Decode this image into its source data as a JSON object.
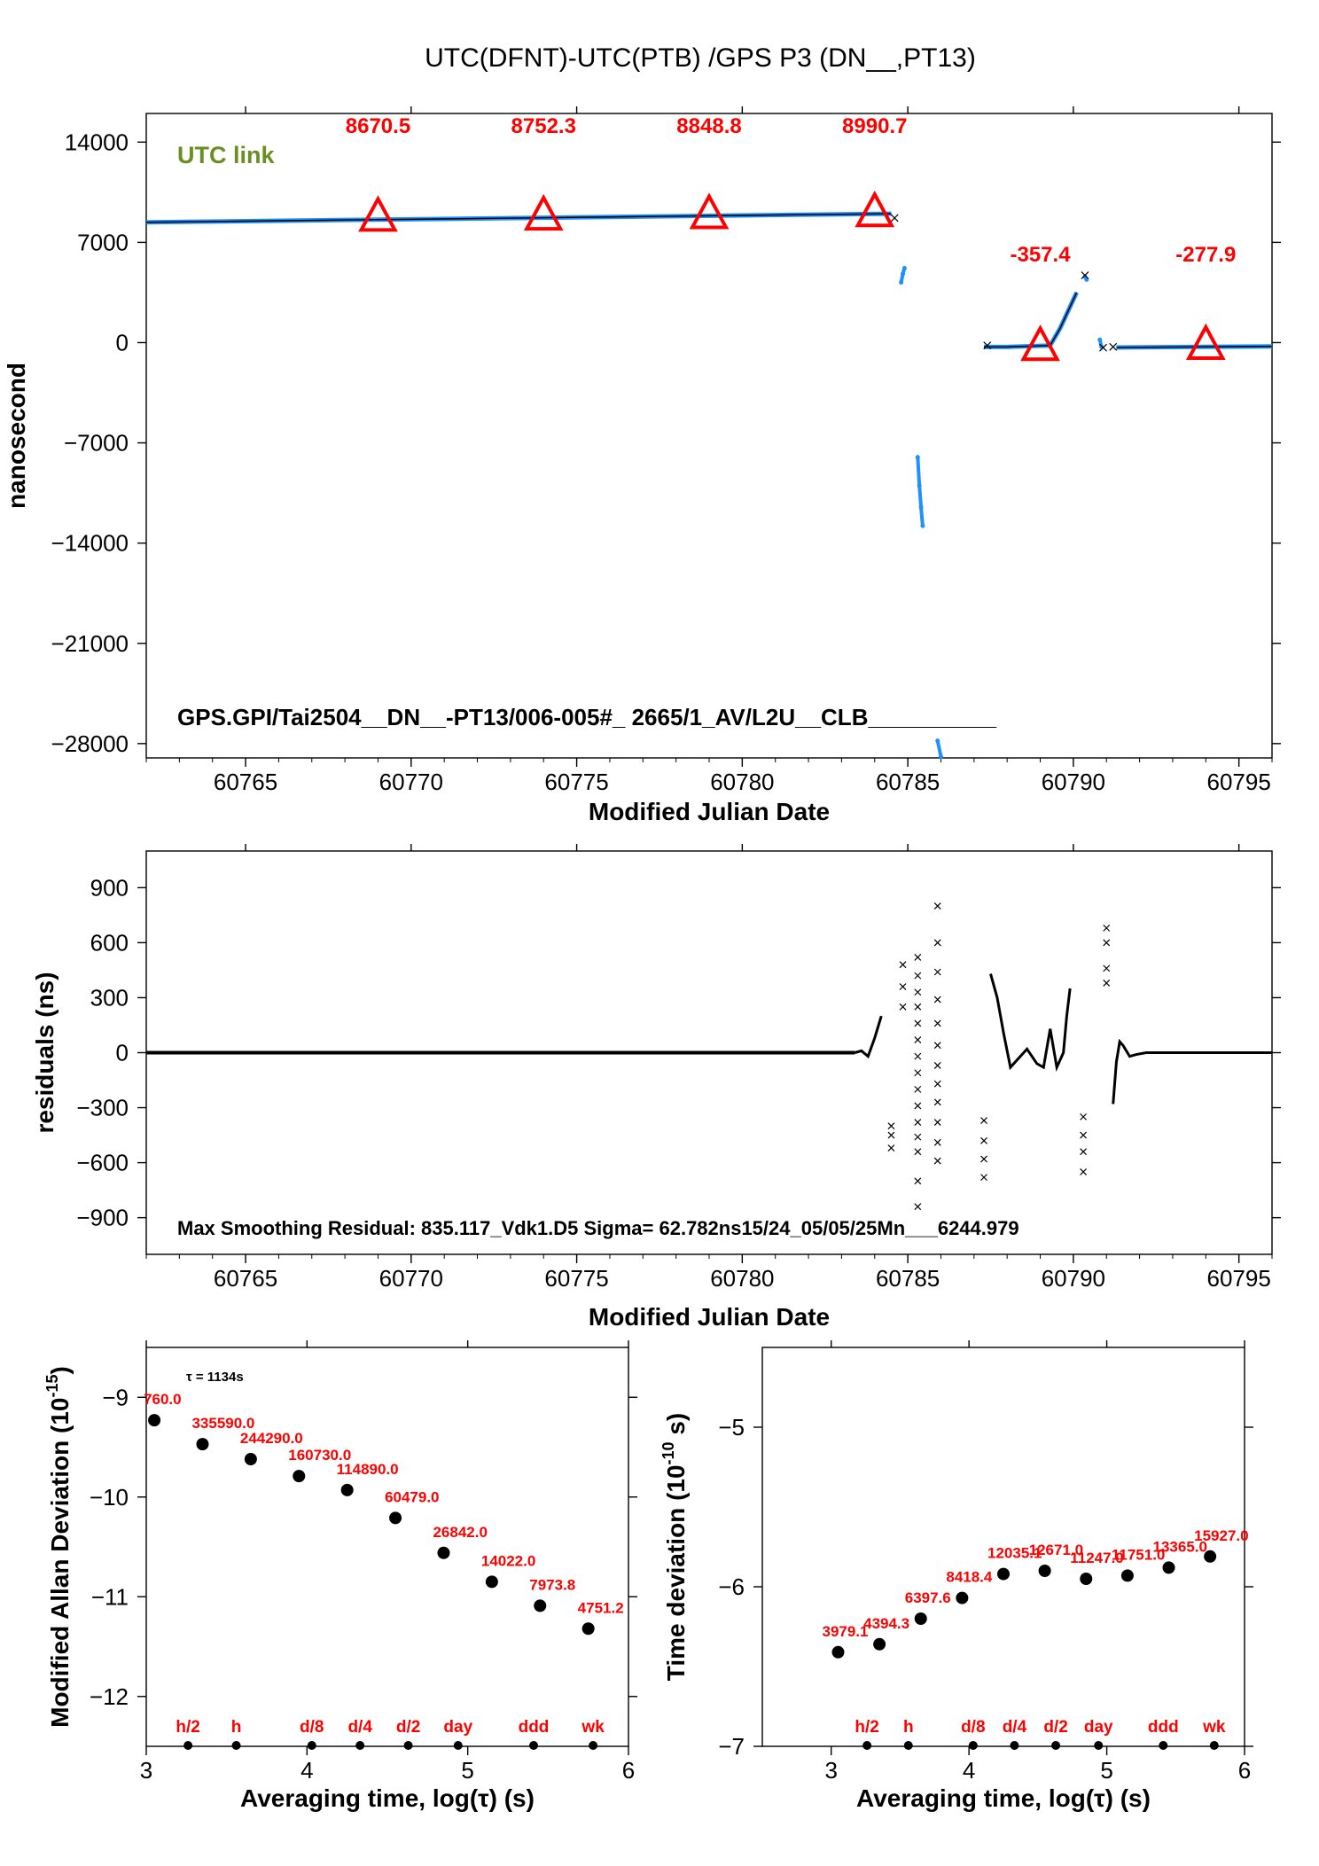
{
  "figure": {
    "title": "UTC(DFNT)-UTC(PTB)  /GPS  P3  (DN__,PT13)"
  },
  "colors": {
    "accent": "#ff0000",
    "series": "#1e90ff",
    "green": "#6b8e23",
    "black": "#000000"
  },
  "chart_data": [
    {
      "type": "scatter",
      "xlabel": "Modified Julian Date",
      "ylabel": "nanosecond",
      "xlim": [
        60762,
        60796
      ],
      "ylim": [
        -29000,
        16000
      ],
      "xticks": [
        60765,
        60770,
        60775,
        60780,
        60785,
        60790,
        60795
      ],
      "yticks": [
        14000,
        7000,
        0,
        -7000,
        -14000,
        -21000,
        -28000
      ],
      "tick_labels_y": [
        "14000",
        "7000",
        "0",
        "−7000",
        "−14000",
        "−21000",
        "−28000"
      ],
      "label_top_left": "UTC link",
      "footer_text": "GPS.GPI/Tai2504__DN__-PT13/006-005#_  2665/1_AV/L2U__CLB__________",
      "series": [
        {
          "kind": "line",
          "x": [
            60762,
            60784.5
          ],
          "y": [
            8400,
            9000
          ]
        },
        {
          "kind": "cluster",
          "x": [
            60784.8,
            60784.85,
            60784.9
          ],
          "y": [
            4200,
            4800,
            5200
          ]
        },
        {
          "kind": "cluster",
          "x": [
            60785.3,
            60785.35,
            60785.4,
            60785.45
          ],
          "y": [
            -8000,
            -10000,
            -11500,
            -12800
          ]
        },
        {
          "kind": "cluster",
          "x": [
            60785.9,
            60786.0
          ],
          "y": [
            -27800,
            -28900
          ]
        },
        {
          "kind": "segment",
          "x": [
            60787.3,
            60788.0,
            60789.3,
            60789.6,
            60790.1
          ],
          "y": [
            -300,
            -300,
            -200,
            1000,
            3500
          ]
        },
        {
          "kind": "cluster",
          "x": [
            60790.35,
            60790.4
          ],
          "y": [
            4600,
            4400
          ]
        },
        {
          "kind": "cluster",
          "x": [
            60790.8,
            60790.85
          ],
          "y": [
            200,
            -300
          ]
        },
        {
          "kind": "line",
          "x": [
            60791.3,
            60796
          ],
          "y": [
            -340,
            -260
          ]
        }
      ],
      "markers": [
        {
          "x": 60769,
          "y": 8670.5,
          "label": "8670.5"
        },
        {
          "x": 60774,
          "y": 8752.3,
          "label": "8752.3"
        },
        {
          "x": 60779,
          "y": 8848.8,
          "label": "8848.8"
        },
        {
          "x": 60784,
          "y": 8990.7,
          "label": "8990.7"
        },
        {
          "x": 60789,
          "y": -357.4,
          "label": "-357.4"
        },
        {
          "x": 60794,
          "y": -277.9,
          "label": "-277.9"
        }
      ]
    },
    {
      "type": "scatter",
      "xlabel": "Modified Julian Date",
      "ylabel": "residuals (ns)",
      "xlim": [
        60762,
        60796
      ],
      "ylim": [
        -1100,
        1100
      ],
      "xticks": [
        60765,
        60770,
        60775,
        60780,
        60785,
        60790,
        60795
      ],
      "yticks": [
        900,
        600,
        300,
        0,
        -300,
        -600,
        -900
      ],
      "tick_labels_y": [
        "900",
        "600",
        "300",
        "0",
        "−300",
        "−600",
        "−900"
      ],
      "footer_text": "Max Smoothing Residual: 835.117_Vdk1.D5  Sigma= 62.782ns15/24_05/05/25Mn___6244.979",
      "wiggle": [
        [
          60783.4,
          0
        ],
        [
          60783.6,
          10
        ],
        [
          60783.8,
          -20
        ],
        [
          60784.0,
          80
        ],
        [
          60784.2,
          200
        ]
      ],
      "wiggle2": [
        [
          60787.5,
          430
        ],
        [
          60787.7,
          300
        ],
        [
          60787.9,
          100
        ],
        [
          60788.1,
          -80
        ],
        [
          60788.3,
          -40
        ],
        [
          60788.6,
          20
        ],
        [
          60788.9,
          -60
        ],
        [
          60789.1,
          -80
        ],
        [
          60789.3,
          130
        ],
        [
          60789.5,
          -80
        ],
        [
          60789.7,
          0
        ],
        [
          60789.8,
          200
        ],
        [
          60789.9,
          350
        ]
      ],
      "wiggle3": [
        [
          60791.2,
          -280
        ],
        [
          60791.3,
          -50
        ],
        [
          60791.4,
          60
        ],
        [
          60791.5,
          40
        ],
        [
          60791.7,
          -20
        ],
        [
          60791.9,
          -10
        ],
        [
          60792.2,
          0
        ],
        [
          60796,
          0
        ]
      ],
      "outliers": [
        {
          "x": 60784.5,
          "y": [
            -400,
            -450,
            -520
          ]
        },
        {
          "x": 60784.85,
          "y": [
            480,
            360,
            250
          ]
        },
        {
          "x": 60785.3,
          "y": [
            520,
            420,
            330,
            250,
            160,
            70,
            -20,
            -110,
            -200,
            -290,
            -380,
            -460,
            -540,
            -700,
            -840
          ]
        },
        {
          "x": 60785.9,
          "y": [
            800,
            600,
            440,
            290,
            160,
            40,
            -70,
            -170,
            -270,
            -380,
            -490,
            -590
          ]
        },
        {
          "x": 60787.3,
          "y": [
            -370,
            -480,
            -580,
            -680
          ]
        },
        {
          "x": 60790.3,
          "y": [
            -350,
            -450,
            -540,
            -650
          ]
        },
        {
          "x": 60791.0,
          "y": [
            680,
            600,
            460,
            380
          ]
        }
      ]
    },
    {
      "type": "scatter",
      "xlabel": "Averaging time, log(τ) (s)",
      "ylabel": "Modified Allan Deviation (10",
      "ylabel_exp": "-15",
      "ylabel_end": ")",
      "xlim": [
        3,
        6
      ],
      "ylim": [
        -12.5,
        -8.5
      ],
      "xticks": [
        3,
        4,
        5,
        6
      ],
      "yticks": [
        -9,
        -10,
        -11,
        -12
      ],
      "tick_labels_y": [
        "−9",
        "−10",
        "−11",
        "−12"
      ],
      "tau_note": "τ = 1134s",
      "x": [
        3.05,
        3.35,
        3.65,
        3.95,
        4.25,
        4.55,
        4.85,
        5.15,
        5.45,
        5.75
      ],
      "y": [
        -9.23,
        -9.47,
        -9.62,
        -9.79,
        -9.93,
        -10.21,
        -10.56,
        -10.85,
        -11.09,
        -11.32
      ],
      "point_labels": [
        "760.0",
        "335590.0",
        "244290.0",
        "160730.0",
        "114890.0",
        "60479.0",
        "26842.0",
        "14022.0",
        "7973.8",
        "4751.2"
      ],
      "interval_labels": [
        "h/2",
        "h",
        "d/8",
        "d/4",
        "d/2",
        "day",
        "ddd",
        "wk"
      ],
      "interval_x": [
        3.26,
        3.56,
        4.03,
        4.33,
        4.63,
        4.94,
        5.41,
        5.78
      ]
    },
    {
      "type": "scatter",
      "xlabel": "Averaging time, log(τ) (s)",
      "ylabel": "Time deviation (10",
      "ylabel_exp": "-10",
      "ylabel_end": " s)",
      "xlim": [
        2.5,
        6
      ],
      "ylim": [
        -7,
        -4.5
      ],
      "xticks": [
        3,
        4,
        5,
        6
      ],
      "yticks": [
        -5,
        -6,
        -7
      ],
      "tick_labels_y": [
        "−5",
        "−6",
        "−7"
      ],
      "x": [
        3.05,
        3.35,
        3.65,
        3.95,
        4.25,
        4.55,
        4.85,
        5.15,
        5.45,
        5.75
      ],
      "y": [
        -6.41,
        -6.36,
        -6.2,
        -6.07,
        -5.92,
        -5.9,
        -5.95,
        -5.93,
        -5.88,
        -5.81
      ],
      "point_labels": [
        "3979.1",
        "4394.3",
        "6397.6",
        "8418.4",
        "12035.1",
        "12671.0",
        "11247.0",
        "11751.0",
        "13365.0",
        "15927.0"
      ],
      "interval_labels": [
        "h/2",
        "h",
        "d/8",
        "d/4",
        "d/2",
        "day",
        "ddd",
        "wk"
      ],
      "interval_x": [
        3.26,
        3.56,
        4.03,
        4.33,
        4.63,
        4.94,
        5.41,
        5.78
      ]
    }
  ]
}
